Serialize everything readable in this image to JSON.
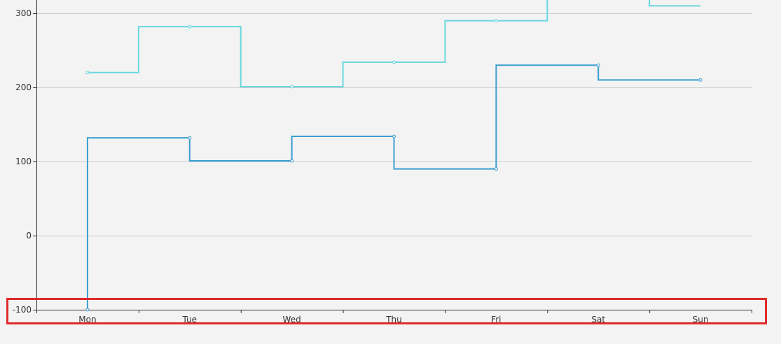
{
  "chart_data": {
    "type": "line",
    "step": "start",
    "categories": [
      "Mon",
      "Tue",
      "Wed",
      "Thu",
      "Fri",
      "Sat",
      "Sun"
    ],
    "series": [
      {
        "color": "#3a9fd1",
        "values": [
          -100,
          132,
          101,
          134,
          90,
          230,
          210
        ]
      },
      {
        "color": "#6ad8df",
        "values": [
          220,
          282,
          201,
          234,
          290,
          330,
          310
        ]
      }
    ],
    "ylim": [
      -100,
      300
    ],
    "yticks": [
      -100,
      0,
      100,
      200,
      300
    ],
    "grid": true,
    "xlabel": "",
    "ylabel": "",
    "title": ""
  },
  "colors": {
    "background": "#f3f3f3",
    "grid": "#cccccc",
    "axis": "#333333",
    "highlight": "#e02a2a"
  }
}
